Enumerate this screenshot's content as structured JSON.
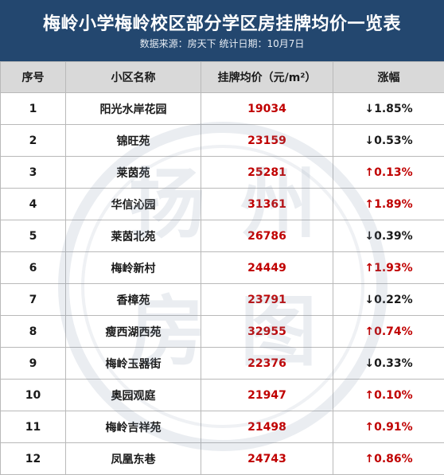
{
  "header": {
    "title": "梅岭小学梅岭校区部分学区房挂牌均价一览表",
    "subtitle": "数据来源：房天下  统计日期：10月7日"
  },
  "columns": [
    "序号",
    "小区名称",
    "挂牌均价（元/m²）",
    "涨幅"
  ],
  "rows": [
    {
      "no": "1",
      "name": "阳光水岸花园",
      "price": "19034",
      "change": "↓1.85%",
      "dir": "down"
    },
    {
      "no": "2",
      "name": "锦旺苑",
      "price": "23159",
      "change": "↓0.53%",
      "dir": "down"
    },
    {
      "no": "3",
      "name": "莱茵苑",
      "price": "25281",
      "change": "↑0.13%",
      "dir": "up"
    },
    {
      "no": "4",
      "name": "华信沁园",
      "price": "31361",
      "change": "↑1.89%",
      "dir": "up"
    },
    {
      "no": "5",
      "name": "莱茵北苑",
      "price": "26786",
      "change": "↓0.39%",
      "dir": "down"
    },
    {
      "no": "6",
      "name": "梅岭新村",
      "price": "24449",
      "change": "↑1.93%",
      "dir": "up"
    },
    {
      "no": "7",
      "name": "香樟苑",
      "price": "23791",
      "change": "↓0.22%",
      "dir": "down"
    },
    {
      "no": "8",
      "name": "瘦西湖西苑",
      "price": "32955",
      "change": "↑0.74%",
      "dir": "up"
    },
    {
      "no": "9",
      "name": "梅岭玉器街",
      "price": "22376",
      "change": "↓0.33%",
      "dir": "down"
    },
    {
      "no": "10",
      "name": "奥园观庭",
      "price": "21947",
      "change": "↑0.10%",
      "dir": "up"
    },
    {
      "no": "11",
      "name": "梅岭吉祥苑",
      "price": "21498",
      "change": "↑0.91%",
      "dir": "up"
    },
    {
      "no": "12",
      "name": "凤凰东巷",
      "price": "24743",
      "change": "↑0.86%",
      "dir": "up"
    }
  ],
  "watermark": {
    "text": "扬州房图",
    "color": "#7d8fa6"
  },
  "colors": {
    "header_bg": "#23476f",
    "header_row_bg": "#d9d9d9",
    "up": "#c00000",
    "down": "#1a1a1a",
    "price": "#c00000"
  }
}
